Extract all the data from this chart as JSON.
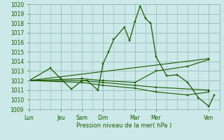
{
  "bg_color": "#cce8e8",
  "grid_color": "#99bbbb",
  "line_color": "#1a5c00",
  "marker_color": "#1a5c00",
  "xlabel_text": "Pression niveau de la mer( hPa )",
  "ylim": [
    1009,
    1020
  ],
  "yticks": [
    1009,
    1010,
    1011,
    1012,
    1013,
    1014,
    1015,
    1016,
    1017,
    1018,
    1019,
    1020
  ],
  "xtick_labels": [
    "Lun",
    "Jeu",
    "Sam",
    "Dim",
    "Mar",
    "Mer",
    "Ven"
  ],
  "xtick_positions": [
    0,
    3,
    5,
    7,
    10,
    12,
    17
  ],
  "xlim": [
    0,
    18
  ],
  "series0": {
    "x": [
      0,
      2,
      3,
      4,
      5,
      5.5,
      6.5,
      7,
      7.5,
      8,
      9,
      9.5,
      10,
      10.5,
      11,
      11.5,
      12,
      13,
      14,
      15,
      16,
      17,
      17.5
    ],
    "y": [
      1012,
      1013.3,
      1012.2,
      1011.1,
      1012.0,
      1012.0,
      1011.0,
      1013.8,
      1015.0,
      1016.3,
      1017.6,
      1016.2,
      1018.2,
      1019.8,
      1018.5,
      1018.0,
      1014.5,
      1012.5,
      1012.6,
      1011.8,
      1010.2,
      1009.3,
      1010.5
    ]
  },
  "series1": {
    "x": [
      0,
      17
    ],
    "y": [
      1012,
      1014.3
    ]
  },
  "series2": {
    "x": [
      0,
      5,
      7,
      10,
      12,
      17
    ],
    "y": [
      1012,
      1012,
      1011.8,
      1011.5,
      1011.3,
      1011.0
    ]
  },
  "series3": {
    "x": [
      0,
      5,
      7,
      10,
      12,
      15,
      17
    ],
    "y": [
      1012,
      1011.8,
      1011.5,
      1011.2,
      1010.8,
      1010.5,
      1010.8
    ]
  },
  "series4": {
    "x": [
      0,
      5,
      7,
      10,
      12,
      15,
      17
    ],
    "y": [
      1012,
      1012.2,
      1012.0,
      1011.8,
      1013.0,
      1013.5,
      1014.2
    ]
  }
}
